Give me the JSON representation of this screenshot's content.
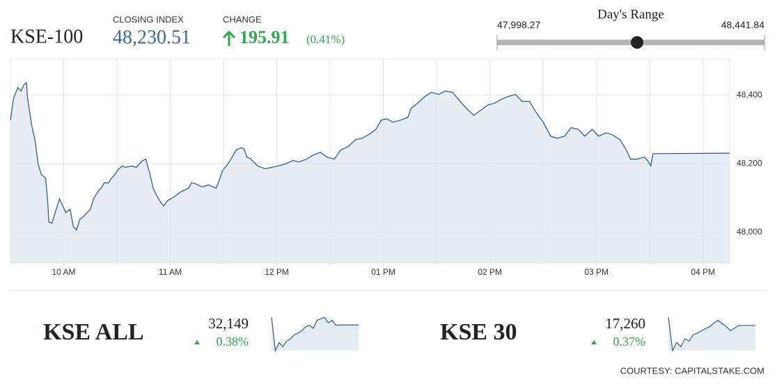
{
  "header": {
    "symbol": "KSE-100",
    "closing_label": "CLOSING INDEX",
    "closing_value": {
      "value": 48230.51,
      "label": "48,230.51"
    },
    "change_label": "CHANGE",
    "change_value": "195.91",
    "change_percent": "(0.41%)"
  },
  "range": {
    "title": "Day's Range",
    "low": {
      "value": 47998.27,
      "label": "47,998.27"
    },
    "high": {
      "value": 48441.84,
      "label": "48,441.84"
    }
  },
  "chart_data": {
    "type": "line",
    "color": "#2f5f8a",
    "fill": "#dde6ee",
    "grid": true,
    "x": [
      9.5,
      9.53,
      9.57,
      9.6,
      9.63,
      9.65,
      9.66,
      9.7,
      9.73,
      9.76,
      9.79,
      9.83,
      9.85,
      9.86,
      9.89,
      9.92,
      9.96,
      9.99,
      10.02,
      10.06,
      10.09,
      10.12,
      10.15,
      10.19,
      10.25,
      10.28,
      10.32,
      10.35,
      10.38,
      10.42,
      10.45,
      10.48,
      10.51,
      10.55,
      10.58,
      10.64,
      10.68,
      10.71,
      10.74,
      10.77,
      10.81,
      10.84,
      10.87,
      10.91,
      10.94,
      10.97,
      11.04,
      11.1,
      11.17,
      11.2,
      11.23,
      11.26,
      11.3,
      11.36,
      11.43,
      11.46,
      11.49,
      11.53,
      11.56,
      11.62,
      11.66,
      11.69,
      11.72,
      11.75,
      11.82,
      11.89,
      11.95,
      12.01,
      12.08,
      12.15,
      12.21,
      12.28,
      12.34,
      12.41,
      12.47,
      12.54,
      12.6,
      12.67,
      12.74,
      12.8,
      12.87,
      12.93,
      12.98,
      13.03,
      13.09,
      13.16,
      13.23,
      13.26,
      13.32,
      13.39,
      13.45,
      13.52,
      13.58,
      13.65,
      13.72,
      13.78,
      13.85,
      13.91,
      13.98,
      14.04,
      14.11,
      14.17,
      14.24,
      14.3,
      14.37,
      14.43,
      14.5,
      14.57,
      14.63,
      14.7,
      14.76,
      14.83,
      14.89,
      14.96,
      15.02,
      15.09,
      15.15,
      15.22,
      15.28,
      15.32,
      15.38,
      15.45,
      15.48,
      15.51,
      15.53,
      16.25
    ],
    "values": [
      48327,
      48392,
      48422,
      48412,
      48432,
      48436,
      48392,
      48311,
      48270,
      48199,
      48168,
      48158,
      48087,
      48030,
      48026,
      48057,
      48097,
      48077,
      48057,
      48067,
      48016,
      48006,
      48037,
      48047,
      48067,
      48097,
      48118,
      48128,
      48144,
      48144,
      48158,
      48168,
      48183,
      48193,
      48189,
      48193,
      48189,
      48199,
      48209,
      48213,
      48168,
      48128,
      48108,
      48087,
      48077,
      48091,
      48104,
      48118,
      48128,
      48144,
      48142,
      48138,
      48132,
      48138,
      48128,
      48152,
      48179,
      48195,
      48209,
      48240,
      48246,
      48244,
      48219,
      48215,
      48193,
      48185,
      48189,
      48193,
      48199,
      48209,
      48205,
      48213,
      48225,
      48233,
      48219,
      48213,
      48240,
      48250,
      48270,
      48274,
      48286,
      48300,
      48327,
      48331,
      48321,
      48327,
      48335,
      48361,
      48376,
      48396,
      48408,
      48402,
      48412,
      48408,
      48382,
      48361,
      48341,
      48355,
      48371,
      48376,
      48388,
      48396,
      48402,
      48382,
      48382,
      48351,
      48321,
      48280,
      48274,
      48280,
      48305,
      48300,
      48280,
      48300,
      48280,
      48290,
      48284,
      48270,
      48240,
      48213,
      48213,
      48219,
      48209,
      48193,
      48229,
      48230.51
    ],
    "xlim": [
      9.5,
      16.25
    ],
    "ylim": [
      47910,
      48505
    ],
    "xticks": [
      {
        "value": 10,
        "label": "10 AM"
      },
      {
        "value": 11,
        "label": "11 AM"
      },
      {
        "value": 12,
        "label": "12 PM"
      },
      {
        "value": 13,
        "label": "01 PM"
      },
      {
        "value": 14,
        "label": "02 PM"
      },
      {
        "value": 15,
        "label": "03 PM"
      },
      {
        "value": 16,
        "label": "04 PM"
      }
    ],
    "yticks": [
      {
        "value": 48000,
        "label": "48,000"
      },
      {
        "value": 48200,
        "label": "48,200"
      },
      {
        "value": 48400,
        "label": "48,400"
      }
    ]
  },
  "indices": [
    {
      "name": "KSE ALL",
      "value": "32,149",
      "change": "0.38%",
      "sparkline": [
        32188,
        32020,
        32060,
        32040,
        32068,
        32080,
        32100,
        32108,
        32120,
        32140,
        32148,
        32132,
        32172,
        32180,
        32188,
        32160,
        32172,
        32148,
        32149,
        32149,
        32149,
        32149,
        32149,
        32149
      ]
    },
    {
      "name": "KSE 30",
      "value": "17,260",
      "change": "0.37%",
      "sparkline": [
        17291,
        17165,
        17195,
        17180,
        17210,
        17201,
        17225,
        17231,
        17240,
        17249,
        17255,
        17270,
        17279,
        17267,
        17255,
        17240,
        17250,
        17260,
        17260,
        17260,
        17260,
        17260
      ]
    }
  ],
  "footer": "COURTESY: CAPITALSTAKE.COM"
}
